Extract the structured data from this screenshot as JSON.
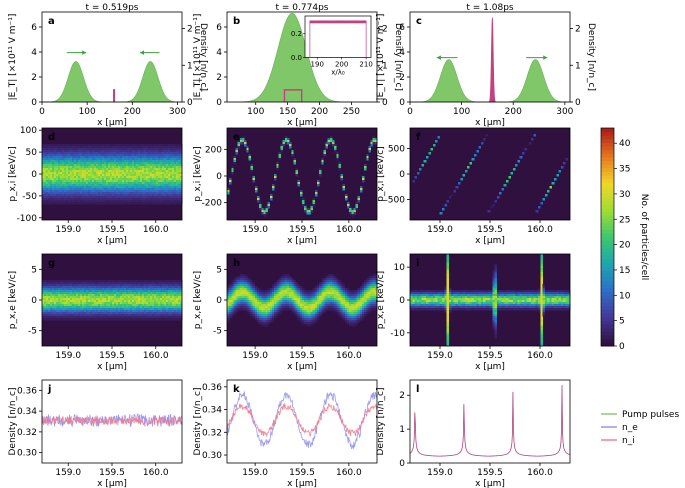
{
  "chart_data": [
    {
      "type": "area",
      "id": "a",
      "panel_letter": "a",
      "title": "t = 0.519ps",
      "xlabel": "x [μm]",
      "ylabel": "|E_T| [×10¹¹ V m⁻¹]",
      "y2label": "Density [n/n_c]",
      "xlim": [
        0,
        310
      ],
      "ylim": [
        0,
        7.2
      ],
      "y2lim": [
        0,
        2.45
      ],
      "xticks": [
        0,
        100,
        200,
        300
      ],
      "yticks": [
        0,
        2,
        4,
        6
      ],
      "y2ticks": [
        0,
        1,
        2
      ],
      "series": [
        {
          "name": "Pump pulses",
          "kind": "gaussian",
          "center": 75,
          "sigma": 17,
          "amp": 3.25
        },
        {
          "name": "Pump pulses",
          "kind": "gaussian",
          "center": 240,
          "sigma": 17,
          "amp": 3.25
        },
        {
          "name": "n_e",
          "kind": "box",
          "x0": 158.8,
          "x1": 160.3,
          "level": 0.33
        }
      ],
      "arrows": [
        {
          "x0": 55,
          "x1": 98,
          "y": 3.95,
          "dir": "right"
        },
        {
          "x0": 260,
          "x1": 217,
          "y": 3.95,
          "dir": "left"
        }
      ]
    },
    {
      "type": "area",
      "id": "b",
      "panel_letter": "b",
      "title": "t = 0.774ps",
      "xlabel": "x [μm]",
      "ylabel": "|E_T| [×10¹¹ V m⁻¹]",
      "y2label": "Density [n/n_c]",
      "xlim": [
        55,
        290
      ],
      "ylim": [
        0,
        7.2
      ],
      "y2lim": [
        0,
        2.45
      ],
      "xticks": [
        100,
        150,
        200,
        250
      ],
      "yticks": [
        0,
        2,
        4,
        6
      ],
      "y2ticks": [
        0,
        1,
        2
      ],
      "series": [
        {
          "name": "Pump pulses",
          "kind": "gaussian",
          "center": 157,
          "sigma": 22,
          "amp": 7.1
        },
        {
          "name": "n_e",
          "kind": "box",
          "x0": 145,
          "x1": 172,
          "level": 0.33
        }
      ],
      "inset": {
        "xlim": [
          185,
          212
        ],
        "ylim": [
          0,
          0.35
        ],
        "xticks": [
          190,
          200,
          210
        ],
        "yticks": [
          0.0,
          0.2
        ],
        "xlabel": "x/λ₀",
        "level": 0.3,
        "ripple": 0.02,
        "x0": 187,
        "x1": 210
      }
    },
    {
      "type": "area",
      "id": "c",
      "panel_letter": "c",
      "title": "t = 1.08ps",
      "xlabel": "x [μm]",
      "ylabel": "|E_T| [×10¹¹ V m⁻¹]",
      "y2label": "Density [n/n_c]",
      "xlim": [
        0,
        310
      ],
      "ylim": [
        0,
        7.2
      ],
      "y2lim": [
        0,
        2.45
      ],
      "xticks": [
        0,
        100,
        200,
        300
      ],
      "yticks": [
        0,
        2,
        4,
        6
      ],
      "y2ticks": [
        0,
        1,
        2
      ],
      "series": [
        {
          "name": "Pump pulses",
          "kind": "gaussian",
          "center": 75,
          "sigma": 16,
          "amp": 3.4
        },
        {
          "name": "Pump pulses",
          "kind": "gaussian",
          "center": 243,
          "sigma": 16,
          "amp": 3.4
        },
        {
          "name": "n_e",
          "kind": "spike",
          "center": 159.5,
          "halfwidth": 4,
          "peak": 2.3
        }
      ],
      "arrows": [
        {
          "x0": 52,
          "x1": 92,
          "y": 3.55,
          "dir": "left"
        },
        {
          "x0": 225,
          "x1": 266,
          "y": 3.55,
          "dir": "right"
        }
      ]
    },
    {
      "type": "heatmap",
      "id": "d",
      "panel_letter": "d",
      "xlabel": "x [μm]",
      "ylabel": "p_x,i [keV/c]",
      "xlim": [
        158.7,
        160.3
      ],
      "ylim": [
        -105,
        105
      ],
      "xticks": [
        159.0,
        159.5,
        160.0
      ],
      "yticks": [
        -100,
        -50,
        0,
        50,
        100
      ],
      "pattern": {
        "kind": "band",
        "amplitude": 0,
        "periods": 0,
        "width": 55
      }
    },
    {
      "type": "heatmap",
      "id": "e",
      "panel_letter": "e",
      "xlabel": "x [μm]",
      "ylabel": "p_x,i [keV/c]",
      "xlim": [
        158.7,
        160.3
      ],
      "ylim": [
        -330,
        360
      ],
      "xticks": [
        159.0,
        159.5,
        160.0
      ],
      "yticks": [
        -200,
        0,
        200
      ],
      "pattern": {
        "kind": "sine",
        "amplitude": 270,
        "periods": 3.4,
        "width": 20
      }
    },
    {
      "type": "heatmap",
      "id": "f",
      "panel_letter": "f",
      "xlabel": "x [μm]",
      "ylabel": "p_x,i [keV/c]",
      "xlim": [
        158.7,
        160.3
      ],
      "ylim": [
        -900,
        900
      ],
      "xticks": [
        159.0,
        159.5,
        160.0
      ],
      "yticks": [
        -500,
        0,
        500
      ],
      "pattern": {
        "kind": "sawtooth",
        "amplitude": 780,
        "periods": 3.4,
        "width": 20
      }
    },
    {
      "type": "heatmap",
      "id": "g",
      "panel_letter": "g",
      "xlabel": "x [μm]",
      "ylabel": "p_x,e [keV/c]",
      "xlim": [
        158.7,
        160.3
      ],
      "ylim": [
        -7.5,
        7.5
      ],
      "xticks": [
        159.0,
        159.5,
        160.0
      ],
      "yticks": [
        -5,
        0,
        5
      ],
      "pattern": {
        "kind": "band",
        "amplitude": 0,
        "periods": 0,
        "width": 2.6
      }
    },
    {
      "type": "heatmap",
      "id": "h",
      "panel_letter": "h",
      "xlabel": "x [μm]",
      "ylabel": "p_x,e [keV/c]",
      "xlim": [
        158.7,
        160.3
      ],
      "ylim": [
        -7.5,
        7.5
      ],
      "xticks": [
        159.0,
        159.5,
        160.0
      ],
      "yticks": [
        -5,
        0,
        5
      ],
      "pattern": {
        "kind": "sine",
        "amplitude": 1.3,
        "periods": 3.4,
        "width": 2.3
      }
    },
    {
      "type": "heatmap",
      "id": "i",
      "panel_letter": "i",
      "xlabel": "x [μm]",
      "ylabel": "p_x,e [keV/c]",
      "xlim": [
        158.7,
        160.3
      ],
      "ylim": [
        -14,
        14
      ],
      "xticks": [
        159.0,
        159.5,
        160.0
      ],
      "yticks": [
        -10,
        0,
        10
      ],
      "pattern": {
        "kind": "spikes",
        "amplitude": 12,
        "periods": 3.4,
        "width": 2.5
      }
    },
    {
      "type": "line",
      "id": "j",
      "panel_letter": "j",
      "xlabel": "x [μm]",
      "ylabel": "Density [n/n_c]",
      "xlim": [
        158.7,
        160.3
      ],
      "ylim": [
        0.29,
        0.37
      ],
      "xticks": [
        159.0,
        159.5,
        160.0
      ],
      "yticks": [
        0.3,
        0.32,
        0.34,
        0.36
      ],
      "series": [
        {
          "name": "n_e",
          "color": "#8f8ff2",
          "base": 0.331,
          "amp": 0,
          "noise": 0.006,
          "periods": 0
        },
        {
          "name": "n_i",
          "color": "#f2788a",
          "base": 0.331,
          "amp": 0,
          "noise": 0.004,
          "periods": 0
        }
      ]
    },
    {
      "type": "line",
      "id": "k",
      "panel_letter": "k",
      "xlabel": "x [μm]",
      "ylabel": "Density [n/n_c]",
      "xlim": [
        158.7,
        160.3
      ],
      "ylim": [
        0.293,
        0.366
      ],
      "xticks": [
        159.0,
        159.5,
        160.0
      ],
      "yticks": [
        0.3,
        0.32,
        0.34,
        0.36
      ],
      "series": [
        {
          "name": "n_e",
          "color": "#8f8ff2",
          "base": 0.331,
          "amp": 0.022,
          "noise": 0.004,
          "periods": 3.4
        },
        {
          "name": "n_i",
          "color": "#f2788a",
          "base": 0.331,
          "amp": 0.012,
          "noise": 0.003,
          "periods": 3.4
        }
      ]
    },
    {
      "type": "line",
      "id": "l",
      "panel_letter": "l",
      "xlabel": "x [μm]",
      "ylabel": "Density [n/n_c]",
      "xlim": [
        158.7,
        160.3
      ],
      "ylim": [
        0,
        2.45
      ],
      "xticks": [
        159.0,
        159.5,
        160.0
      ],
      "yticks": [
        0,
        1,
        2
      ],
      "series": [
        {
          "name": "n_i",
          "color": "#a3306e",
          "kind": "cusp",
          "peak": 2.3,
          "floor": 0.18,
          "peaks_at": [
            158.75,
            159.24,
            159.73,
            160.22
          ]
        }
      ]
    }
  ],
  "colorbar": {
    "label": "No. of particles/cell",
    "min": 0,
    "max": 43,
    "ticks": [
      0,
      5,
      10,
      15,
      20,
      25,
      30,
      35,
      40
    ]
  },
  "legend": {
    "entries": [
      {
        "label": "Pump pulses",
        "color": "#80c76a"
      },
      {
        "label": "n_e",
        "color": "#8f8ff2"
      },
      {
        "label": "n_i",
        "color": "#f2788a"
      }
    ]
  },
  "colors": {
    "pump": "#80c76a",
    "ion_box": "#c2417f",
    "heat_bg": "#30103f"
  }
}
